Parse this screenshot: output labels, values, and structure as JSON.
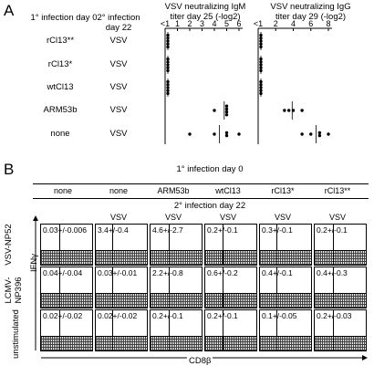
{
  "panel_a": {
    "letter": "A",
    "col1_header": "1° infection day 0",
    "col2_header": "2° infection day 22",
    "rows": [
      {
        "primary": "rCl13**",
        "secondary": "VSV"
      },
      {
        "primary": "rCl13*",
        "secondary": "VSV"
      },
      {
        "primary": "wtCl13",
        "secondary": "VSV"
      },
      {
        "primary": "ARM53b",
        "secondary": "VSV"
      },
      {
        "primary": "none",
        "secondary": "VSV"
      }
    ],
    "igm_title_line1": "VSV neutralizing IgM",
    "igm_title_line2": "titer day 25 (-log2)",
    "igg_title_line1": "VSV neutralizing IgG",
    "igg_title_line2": "titer day 29 (-log2)",
    "igm_ticks": [
      "<1",
      "1",
      "2",
      "3",
      "4",
      "5",
      "6"
    ],
    "igg_ticks": [
      "<1",
      "2",
      "4",
      "6",
      "8"
    ]
  },
  "chart_data": [
    {
      "type": "scatter",
      "title": "VSV neutralizing IgM titer day 25 (-log2)",
      "categories": [
        "rCl13**",
        "rCl13*",
        "wtCl13",
        "ARM53b",
        "none"
      ],
      "points": [
        {
          "category": "rCl13**",
          "values": [
            0,
            0,
            0,
            0,
            0
          ]
        },
        {
          "category": "rCl13*",
          "values": [
            0,
            0,
            0,
            0,
            0
          ]
        },
        {
          "category": "wtCl13",
          "values": [
            0,
            0,
            0,
            0,
            0
          ]
        },
        {
          "category": "ARM53b",
          "values": [
            4,
            5,
            5,
            5,
            5
          ]
        },
        {
          "category": "none",
          "values": [
            2,
            4,
            5,
            5,
            6
          ]
        }
      ]
    },
    {
      "type": "scatter",
      "title": "VSV neutralizing IgG titer day 29 (-log2)",
      "categories": [
        "rCl13**",
        "rCl13*",
        "wtCl13",
        "ARM53b",
        "none"
      ],
      "points": [
        {
          "category": "rCl13**",
          "values": [
            0,
            0,
            0,
            0,
            0
          ]
        },
        {
          "category": "rCl13*",
          "values": [
            0,
            0,
            0,
            0,
            0
          ]
        },
        {
          "category": "wtCl13",
          "values": [
            0,
            0,
            0,
            0,
            0
          ]
        },
        {
          "category": "ARM53b",
          "values": [
            3,
            3.5,
            4,
            5
          ]
        },
        {
          "category": "none",
          "values": [
            5,
            6,
            7,
            7,
            8
          ]
        }
      ]
    }
  ],
  "panel_b": {
    "letter": "B",
    "primary_header": "1° infection day 0",
    "secondary_header": "2° infection day 22",
    "primary_cols": [
      "none",
      "none",
      "ARM53b",
      "wtCl13",
      "rCl13*",
      "rCl13**"
    ],
    "secondary_cols": [
      "",
      "VSV",
      "VSV",
      "VSV",
      "VSV",
      "VSV"
    ],
    "row_labels": [
      "VSV-NP52",
      "LCMV-NP396",
      "unstimulated"
    ],
    "y_axis": "IFNγ",
    "x_axis": "CD8β",
    "values": [
      [
        "0.03+/-0.006",
        "3.4+/-0.4",
        "4.6+/-2.7",
        "0.2+/-0.1",
        "0.3+/-0.1",
        "0.2+/-0.1"
      ],
      [
        "0.04+/-0.04",
        "0.03+/-0.01",
        "2.2+/-0.8",
        "0.6+/-0.2",
        "0.4+/-0.1",
        "0.4+/-0.3"
      ],
      [
        "0.02+/-0.02",
        "0.02+/-0.02",
        "0.2+/-0.1",
        "0.2+/-0.1",
        "0.1+/-0.05",
        "0.2+/-0.03"
      ]
    ]
  }
}
